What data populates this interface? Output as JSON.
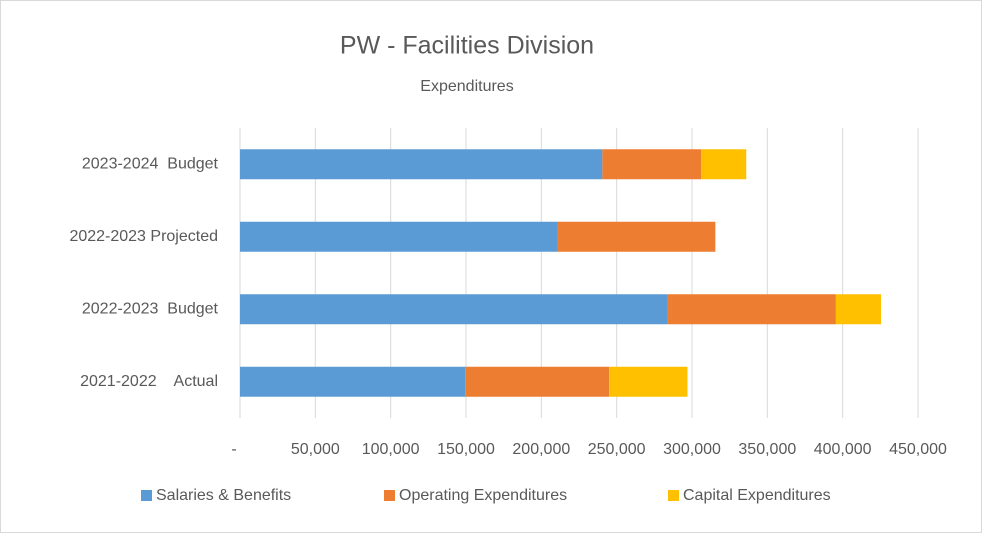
{
  "chart_data": {
    "type": "stacked_barh",
    "title": "PW - Facilities Division",
    "subtitle": "Expenditures",
    "categories": [
      "2021-2022    Actual",
      "2022-2023  Budget",
      "2022-2023 Projected",
      "2023-2024  Budget"
    ],
    "series": [
      {
        "name": "Salaries & Benefits",
        "color": "#5b9bd5",
        "values": [
          149500,
          284000,
          211000,
          240500
        ]
      },
      {
        "name": "Operating Expenditures",
        "color": "#ed7d31",
        "values": [
          95500,
          111500,
          104500,
          65500
        ]
      },
      {
        "name": "Capital Expenditures",
        "color": "#ffc000",
        "values": [
          52000,
          30000,
          0,
          30000
        ]
      }
    ],
    "xlim": [
      0,
      450000
    ],
    "xticks": [
      {
        "value": 0,
        "label": "-"
      },
      {
        "value": 50000,
        "label": "50,000"
      },
      {
        "value": 100000,
        "label": "100,000"
      },
      {
        "value": 150000,
        "label": "150,000"
      },
      {
        "value": 200000,
        "label": "200,000"
      },
      {
        "value": 250000,
        "label": "250,000"
      },
      {
        "value": 300000,
        "label": "300,000"
      },
      {
        "value": 350000,
        "label": "350,000"
      },
      {
        "value": 400000,
        "label": "400,000"
      },
      {
        "value": 450000,
        "label": "450,000"
      }
    ],
    "grid": true,
    "legend": "bottom"
  }
}
